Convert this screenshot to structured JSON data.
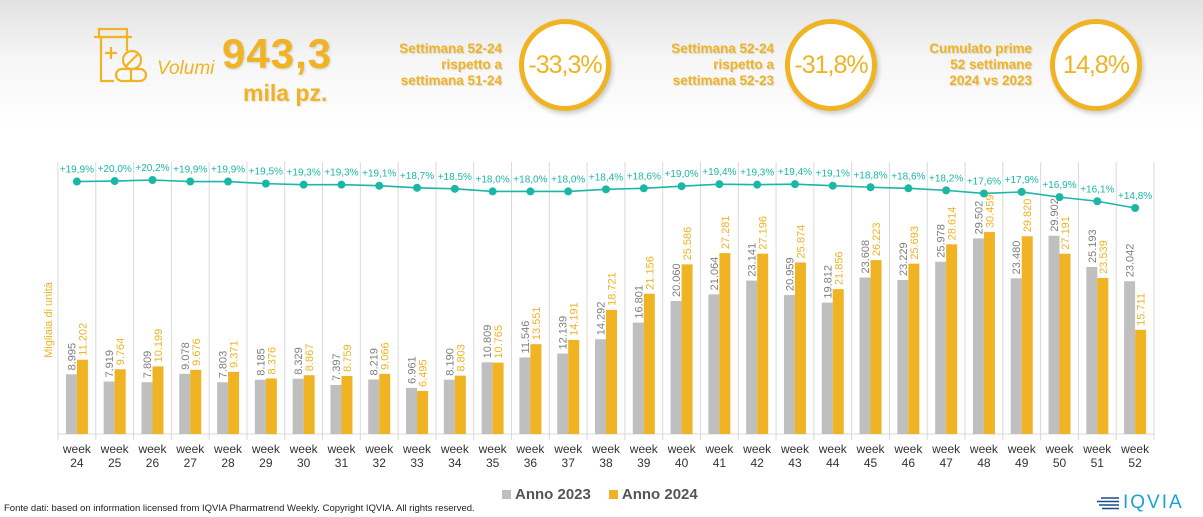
{
  "header": {
    "volumes_label": "Volumi",
    "volumes_value": "943,3",
    "volumes_unit": "mila pz.",
    "icon": "medicine-bottle-pills-icon",
    "kpis": [
      {
        "label": "Settimana 52-24\nrispetto a\nsettimana 51-24",
        "value": "-33,3%"
      },
      {
        "label": "Settimana 52-24\nrispetto a\nsettimana 52-23",
        "value": "-31,8%"
      },
      {
        "label": "Cumulato prime\n52 settimane\n2024 vs 2023",
        "value": "14,8%"
      }
    ]
  },
  "colors": {
    "accent": "#f0b323",
    "series_2023": "#bfbfbf",
    "series_2024": "#f0b323",
    "line": "#1ab7a6",
    "line_label": "#1ab7a6",
    "label_2023": "#7f7f7f",
    "logo": "#1d9fd8"
  },
  "chart_data": {
    "type": "bar",
    "title": "",
    "xlabel": "",
    "ylabel": "Migliaia di unità",
    "categories": [
      "week 24",
      "week 25",
      "week 26",
      "week 27",
      "week 28",
      "week 29",
      "week 30",
      "week 31",
      "week 32",
      "week 33",
      "week 34",
      "week 35",
      "week 36",
      "week 37",
      "week 38",
      "week 39",
      "week 40",
      "week 41",
      "week 42",
      "week 43",
      "week 44",
      "week 45",
      "week 46",
      "week 47",
      "week 48",
      "week 49",
      "week 50",
      "week 51",
      "week 52"
    ],
    "series": [
      {
        "name": "Anno 2023",
        "values": [
          8.995,
          7.919,
          7.809,
          9.078,
          7.803,
          8.185,
          8.329,
          7.397,
          8.219,
          6.961,
          8.19,
          10.809,
          11.546,
          12.139,
          14.292,
          16.801,
          20.06,
          21.064,
          23.141,
          20.959,
          19.812,
          23.608,
          23.229,
          25.978,
          29.502,
          23.48,
          29.902,
          25.193,
          23.042
        ],
        "labels": [
          "8.995",
          "7.919",
          "7.809",
          "9.078",
          "7.803",
          "8.185",
          "8.329",
          "7.397",
          "8.219",
          "6.961",
          "8.190",
          "10.809",
          "11.546",
          "12.139",
          "14.292",
          "16.801",
          "20.060",
          "21.064",
          "23.141",
          "20.959",
          "19.812",
          "23.608",
          "23.229",
          "25.978",
          "29.502",
          "23.480",
          "29.902",
          "25.193",
          "23.042"
        ]
      },
      {
        "name": "Anno 2024",
        "values": [
          11.202,
          9.764,
          10.199,
          9.676,
          9.371,
          8.376,
          8.867,
          8.759,
          9.066,
          6.495,
          8.803,
          10.765,
          13.551,
          14.191,
          18.721,
          21.156,
          25.586,
          27.281,
          27.196,
          25.874,
          21.856,
          26.223,
          25.693,
          28.614,
          30.459,
          29.82,
          27.191,
          23.539,
          15.711
        ],
        "labels": [
          "11.202",
          "9.764",
          "10.199",
          "9.676",
          "9.371",
          "8.376",
          "8.867",
          "8.759",
          "9.066",
          "6.495",
          "8.803",
          "10.765",
          "13.551",
          "14.191",
          "18.721",
          "21.156",
          "25.586",
          "27.281",
          "27.196",
          "25.874",
          "21.856",
          "26.223",
          "25.693",
          "28.614",
          "30.459",
          "29.820",
          "27.191",
          "23.539",
          "15.711"
        ]
      }
    ],
    "line_series": {
      "name": "Cumulative growth 2024 vs 2023",
      "values": [
        19.9,
        20.0,
        20.2,
        19.9,
        19.9,
        19.5,
        19.3,
        19.3,
        19.1,
        18.7,
        18.5,
        18.0,
        18.0,
        18.0,
        18.4,
        18.6,
        19.0,
        19.4,
        19.3,
        19.4,
        19.1,
        18.8,
        18.6,
        18.2,
        17.6,
        17.9,
        16.9,
        16.1,
        14.8
      ],
      "labels": [
        "+19,9%",
        "+20,0%",
        "+20,2%",
        "+19,9%",
        "+19,9%",
        "+19,5%",
        "+19,3%",
        "+19,3%",
        "+19,1%",
        "+18,7%",
        "+18,5%",
        "+18,0%",
        "+18,0%",
        "+18,0%",
        "+18,4%",
        "+18,6%",
        "+19,0%",
        "+19,4%",
        "+19,3%",
        "+19,4%",
        "+19,1%",
        "+18,8%",
        "+18,6%",
        "+18,2%",
        "+17,6%",
        "+17,9%",
        "+16,9%",
        "+16,1%",
        "+14,8%"
      ]
    },
    "ylim": [
      0,
      30.5
    ],
    "grid": "vertical-separators",
    "legend": [
      "Anno 2023",
      "Anno 2024"
    ],
    "legend_position": "bottom-center"
  },
  "footer": {
    "source": "Fonte dati: based on information licensed from IQVIA Pharmatrend Weekly. Copyright IQVIA. All rights reserved.",
    "logo_text": "IQVIA"
  }
}
